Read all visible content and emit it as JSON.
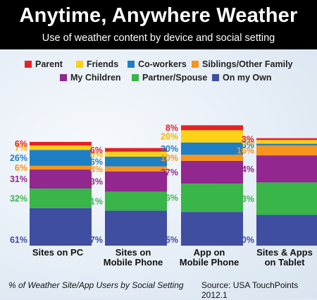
{
  "header": {
    "title": "Anytime, Anywhere Weather",
    "subtitle": "Use of weather content by device and social setting"
  },
  "footer": {
    "note": "% of Weather Site/App Users by Social Setting",
    "source": "Source: USA TouchPoints 2012.1"
  },
  "legend": [
    {
      "label": "Parent",
      "color": "#e32227"
    },
    {
      "label": "Friends",
      "color": "#fcd116"
    },
    {
      "label": "Co-workers",
      "color": "#1f7fc4"
    },
    {
      "label": "Siblings/Other Family",
      "color": "#f7941d"
    },
    {
      "label": "My Children",
      "color": "#92278f"
    },
    {
      "label": "Partner/Spouse",
      "color": "#39b54a"
    },
    {
      "label": "On my Own",
      "color": "#3f4ea1"
    }
  ],
  "chart_data": {
    "type": "bar",
    "stacked": true,
    "categories": [
      "Sites on PC",
      "Sites on Mobile Phone",
      "App on Mobile Phone",
      "Sites & Apps on Tablet"
    ],
    "category_lines": [
      [
        "Sites on PC"
      ],
      [
        "Sites on",
        "Mobile Phone"
      ],
      [
        "App on",
        "Mobile Phone"
      ],
      [
        "Sites & Apps",
        "on Tablet"
      ]
    ],
    "series": [
      {
        "name": "On my Own",
        "color": "#3f4ea1",
        "label_color": "#3f4ea1",
        "values": [
          61,
          57,
          55,
          50
        ]
      },
      {
        "name": "Partner/Spouse",
        "color": "#39b54a",
        "label_color": "#39b54a",
        "values": [
          32,
          31,
          46,
          53
        ]
      },
      {
        "name": "My Children",
        "color": "#92278f",
        "label_color": "#92278f",
        "values": [
          31,
          33,
          37,
          44
        ]
      },
      {
        "name": "Siblings/Other Family",
        "color": "#f7941d",
        "label_color": "#f7941d",
        "values": [
          6,
          8,
          10,
          16
        ]
      },
      {
        "name": "Co-workers",
        "color": "#1f7fc4",
        "label_color": "#1f7fc4",
        "values": [
          26,
          16,
          20,
          3
        ]
      },
      {
        "name": "Friends",
        "color": "#fcd116",
        "label_color": "#f2b800",
        "values": [
          7,
          8,
          20,
          6
        ]
      },
      {
        "name": "Parent",
        "color": "#e32227",
        "label_color": "#e32227",
        "values": [
          6,
          6,
          8,
          3
        ]
      }
    ],
    "value_suffix": "%"
  }
}
